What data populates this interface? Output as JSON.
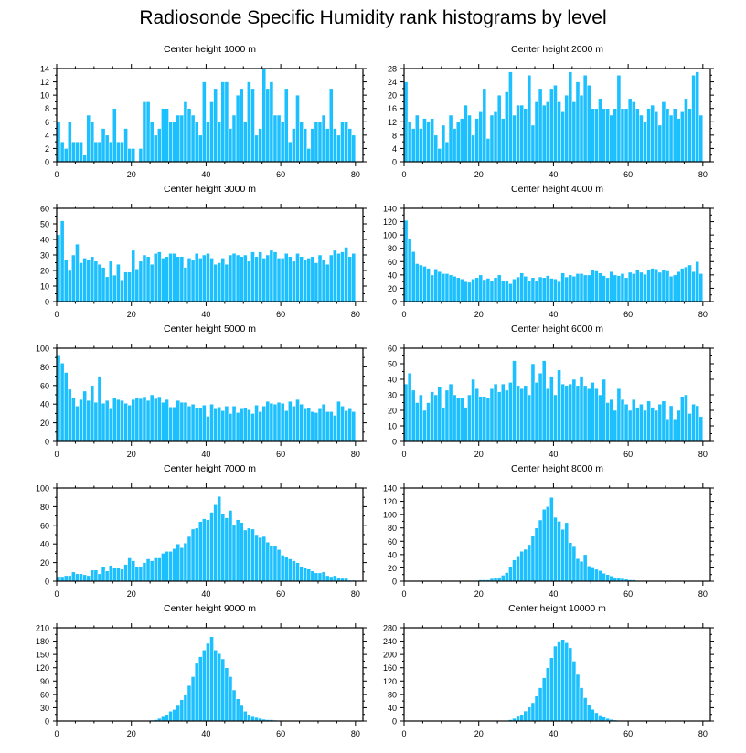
{
  "title": "Radiosonde Specific Humidity rank histograms by level",
  "colors": {
    "bar": "#1cc0ff",
    "bar_edge": "#ffffff",
    "axis": "#000000"
  },
  "chart_data": [
    {
      "type": "bar",
      "title": "Center height 1000 m",
      "xlim": [
        0,
        82
      ],
      "xticks": [
        0,
        20,
        40,
        60,
        80
      ],
      "ylim": [
        0,
        14
      ],
      "yticks": [
        0,
        2,
        4,
        6,
        8,
        10,
        12,
        14
      ],
      "values": [
        6,
        3,
        2,
        6,
        3,
        3,
        3,
        1,
        7,
        6,
        3,
        3,
        5,
        4,
        3,
        8,
        3,
        3,
        5,
        2,
        2,
        0,
        2,
        9,
        9,
        6,
        4,
        5,
        8,
        8,
        6,
        6,
        7,
        7,
        9,
        8,
        7,
        6,
        4,
        12,
        6,
        9,
        11,
        6,
        12,
        12,
        5,
        7,
        10,
        11,
        6,
        12,
        11,
        4,
        5,
        14,
        11,
        12,
        7,
        7,
        6,
        11,
        3,
        5,
        10,
        6,
        5,
        2,
        5,
        6,
        6,
        7,
        5,
        11,
        5,
        4,
        6,
        6,
        5,
        4
      ],
      "xlabel": "",
      "ylabel": ""
    },
    {
      "type": "bar",
      "title": "Center height 2000 m",
      "xlim": [
        0,
        82
      ],
      "xticks": [
        0,
        20,
        40,
        60,
        80
      ],
      "ylim": [
        0,
        28
      ],
      "yticks": [
        0,
        4,
        8,
        12,
        16,
        20,
        24,
        28
      ],
      "values": [
        24,
        12,
        10,
        14,
        10,
        13,
        12,
        13,
        8,
        4,
        11,
        6,
        14,
        10,
        12,
        13,
        17,
        14,
        8,
        13,
        15,
        22,
        7,
        14,
        15,
        20,
        13,
        21,
        27,
        14,
        17,
        17,
        16,
        26,
        11,
        18,
        22,
        17,
        18,
        22,
        23,
        18,
        15,
        20,
        27,
        18,
        24,
        20,
        26,
        23,
        16,
        16,
        19,
        16,
        16,
        14,
        16,
        26,
        16,
        16,
        19,
        18,
        16,
        14,
        12,
        16,
        17,
        15,
        11,
        18,
        16,
        14,
        16,
        13,
        15,
        19,
        16,
        26,
        27,
        14
      ],
      "xlabel": "",
      "ylabel": ""
    },
    {
      "type": "bar",
      "title": "Center height 3000 m",
      "xlim": [
        0,
        82
      ],
      "xticks": [
        0,
        20,
        40,
        60,
        80
      ],
      "ylim": [
        0,
        60
      ],
      "yticks": [
        0,
        10,
        20,
        30,
        40,
        50,
        60
      ],
      "values": [
        43,
        52,
        27,
        20,
        30,
        37,
        25,
        28,
        27,
        29,
        26,
        24,
        22,
        16,
        26,
        17,
        24,
        14,
        19,
        19,
        33,
        21,
        26,
        30,
        29,
        24,
        31,
        32,
        28,
        29,
        31,
        31,
        29,
        29,
        22,
        28,
        27,
        31,
        28,
        30,
        31,
        28,
        24,
        25,
        28,
        24,
        30,
        31,
        30,
        29,
        30,
        26,
        32,
        29,
        32,
        28,
        30,
        33,
        32,
        28,
        28,
        31,
        29,
        26,
        31,
        29,
        27,
        28,
        29,
        25,
        30,
        27,
        24,
        30,
        33,
        31,
        32,
        35,
        29,
        31
      ],
      "xlabel": "",
      "ylabel": ""
    },
    {
      "type": "bar",
      "title": "Center height 4000 m",
      "xlim": [
        0,
        82
      ],
      "xticks": [
        0,
        20,
        40,
        60,
        80
      ],
      "ylim": [
        0,
        140
      ],
      "yticks": [
        0,
        20,
        40,
        60,
        80,
        100,
        120,
        140
      ],
      "values": [
        122,
        95,
        75,
        57,
        55,
        53,
        50,
        40,
        49,
        45,
        42,
        42,
        40,
        38,
        36,
        34,
        30,
        29,
        34,
        36,
        40,
        33,
        35,
        32,
        36,
        40,
        32,
        32,
        27,
        34,
        37,
        43,
        38,
        32,
        36,
        32,
        37,
        36,
        39,
        35,
        34,
        30,
        43,
        37,
        40,
        38,
        42,
        42,
        40,
        40,
        48,
        46,
        43,
        39,
        36,
        45,
        40,
        39,
        42,
        36,
        44,
        42,
        48,
        44,
        41,
        47,
        50,
        49,
        44,
        48,
        46,
        38,
        40,
        45,
        50,
        52,
        55,
        45,
        60,
        42
      ],
      "xlabel": "",
      "ylabel": ""
    },
    {
      "type": "bar",
      "title": "Center height 5000 m",
      "xlim": [
        0,
        82
      ],
      "xticks": [
        0,
        20,
        40,
        60,
        80
      ],
      "ylim": [
        0,
        100
      ],
      "yticks": [
        0,
        20,
        40,
        60,
        80,
        100
      ],
      "values": [
        92,
        84,
        74,
        56,
        47,
        38,
        45,
        54,
        44,
        60,
        42,
        70,
        41,
        44,
        35,
        47,
        45,
        44,
        41,
        39,
        45,
        47,
        46,
        48,
        44,
        50,
        46,
        48,
        42,
        45,
        37,
        37,
        44,
        42,
        42,
        38,
        40,
        36,
        36,
        39,
        27,
        40,
        35,
        37,
        33,
        38,
        30,
        38,
        31,
        35,
        36,
        34,
        30,
        39,
        32,
        38,
        43,
        41,
        40,
        42,
        41,
        33,
        43,
        38,
        45,
        40,
        35,
        36,
        32,
        31,
        35,
        40,
        32,
        32,
        28,
        43,
        38,
        33,
        35,
        32
      ],
      "xlabel": "",
      "ylabel": ""
    },
    {
      "type": "bar",
      "title": "Center height 6000 m",
      "xlim": [
        0,
        82
      ],
      "xticks": [
        0,
        20,
        40,
        60,
        80
      ],
      "ylim": [
        0,
        60
      ],
      "yticks": [
        0,
        10,
        20,
        30,
        40,
        50,
        60
      ],
      "values": [
        37,
        44,
        33,
        25,
        30,
        20,
        25,
        32,
        30,
        35,
        22,
        33,
        37,
        30,
        28,
        28,
        22,
        30,
        40,
        34,
        29,
        29,
        28,
        34,
        37,
        32,
        37,
        33,
        38,
        52,
        36,
        34,
        36,
        30,
        50,
        38,
        44,
        52,
        34,
        42,
        30,
        46,
        37,
        36,
        37,
        40,
        36,
        42,
        36,
        34,
        38,
        34,
        30,
        40,
        25,
        27,
        20,
        34,
        27,
        24,
        20,
        27,
        22,
        24,
        20,
        26,
        22,
        20,
        24,
        26,
        14,
        23,
        14,
        20,
        29,
        30,
        18,
        24,
        23,
        16
      ],
      "xlabel": "",
      "ylabel": ""
    },
    {
      "type": "bar",
      "title": "Center height 7000 m",
      "xlim": [
        0,
        82
      ],
      "xticks": [
        0,
        20,
        40,
        60,
        80
      ],
      "ylim": [
        0,
        100
      ],
      "yticks": [
        0,
        20,
        40,
        60,
        80,
        100
      ],
      "values": [
        5,
        5,
        6,
        6,
        10,
        8,
        8,
        7,
        6,
        12,
        12,
        8,
        15,
        11,
        17,
        14,
        14,
        13,
        18,
        25,
        22,
        15,
        16,
        20,
        24,
        22,
        25,
        25,
        30,
        32,
        32,
        35,
        40,
        36,
        41,
        48,
        56,
        57,
        64,
        67,
        66,
        74,
        82,
        91,
        72,
        68,
        76,
        60,
        66,
        63,
        55,
        57,
        56,
        50,
        47,
        48,
        42,
        38,
        38,
        34,
        28,
        26,
        24,
        22,
        20,
        16,
        14,
        13,
        11,
        9,
        9,
        10,
        6,
        5,
        6,
        4,
        3,
        3,
        1,
        1
      ],
      "xlabel": "",
      "ylabel": ""
    },
    {
      "type": "bar",
      "title": "Center height 8000 m",
      "xlim": [
        0,
        82
      ],
      "xticks": [
        0,
        20,
        40,
        60,
        80
      ],
      "ylim": [
        0,
        140
      ],
      "yticks": [
        0,
        20,
        40,
        60,
        80,
        100,
        120,
        140
      ],
      "values": [
        0,
        0,
        0,
        0,
        0,
        0,
        0,
        0,
        0,
        0,
        0,
        0,
        0,
        0,
        0,
        0,
        1,
        1,
        1,
        1,
        2,
        2,
        2,
        4,
        5,
        6,
        9,
        13,
        22,
        32,
        38,
        45,
        48,
        55,
        68,
        80,
        92,
        108,
        112,
        126,
        96,
        90,
        78,
        88,
        58,
        52,
        34,
        30,
        40,
        23,
        20,
        18,
        16,
        12,
        10,
        8,
        6,
        5,
        4,
        3,
        2,
        2,
        1,
        1,
        0,
        0,
        0,
        0,
        0,
        0,
        0,
        0,
        0,
        0,
        0,
        0,
        0,
        0,
        0,
        0
      ],
      "xlabel": "",
      "ylabel": ""
    },
    {
      "type": "bar",
      "title": "Center height 9000 m",
      "xlim": [
        0,
        82
      ],
      "xticks": [
        0,
        20,
        40,
        60,
        80
      ],
      "ylim": [
        0,
        210
      ],
      "yticks": [
        0,
        30,
        60,
        90,
        120,
        150,
        180,
        210
      ],
      "values": [
        0,
        0,
        0,
        0,
        0,
        0,
        0,
        0,
        0,
        0,
        0,
        0,
        0,
        0,
        0,
        0,
        0,
        0,
        0,
        0,
        0,
        0,
        0,
        0,
        1,
        2,
        3,
        6,
        10,
        15,
        22,
        26,
        35,
        48,
        60,
        80,
        100,
        130,
        145,
        160,
        175,
        190,
        160,
        152,
        140,
        120,
        100,
        70,
        50,
        35,
        22,
        15,
        10,
        8,
        6,
        4,
        3,
        3,
        2,
        1,
        1,
        1,
        0,
        0,
        0,
        0,
        0,
        0,
        0,
        0,
        0,
        0,
        0,
        0,
        0,
        0,
        0,
        0,
        0,
        0
      ],
      "xlabel": "",
      "ylabel": ""
    },
    {
      "type": "bar",
      "title": "Center height 10000 m",
      "xlim": [
        0,
        82
      ],
      "xticks": [
        0,
        20,
        40,
        60,
        80
      ],
      "ylim": [
        0,
        280
      ],
      "yticks": [
        0,
        40,
        80,
        120,
        160,
        200,
        240,
        280
      ],
      "values": [
        0,
        0,
        0,
        0,
        0,
        0,
        0,
        0,
        0,
        0,
        0,
        0,
        0,
        0,
        0,
        0,
        0,
        0,
        0,
        0,
        0,
        0,
        0,
        0,
        0,
        1,
        1,
        2,
        4,
        8,
        14,
        20,
        30,
        42,
        55,
        75,
        100,
        130,
        160,
        190,
        225,
        240,
        245,
        235,
        220,
        180,
        140,
        100,
        70,
        50,
        35,
        25,
        18,
        12,
        8,
        5,
        3,
        2,
        1,
        1,
        0,
        0,
        0,
        0,
        0,
        0,
        0,
        0,
        0,
        0,
        0,
        0,
        0,
        0,
        0,
        0,
        0,
        0,
        0,
        0
      ],
      "xlabel": "",
      "ylabel": ""
    }
  ]
}
